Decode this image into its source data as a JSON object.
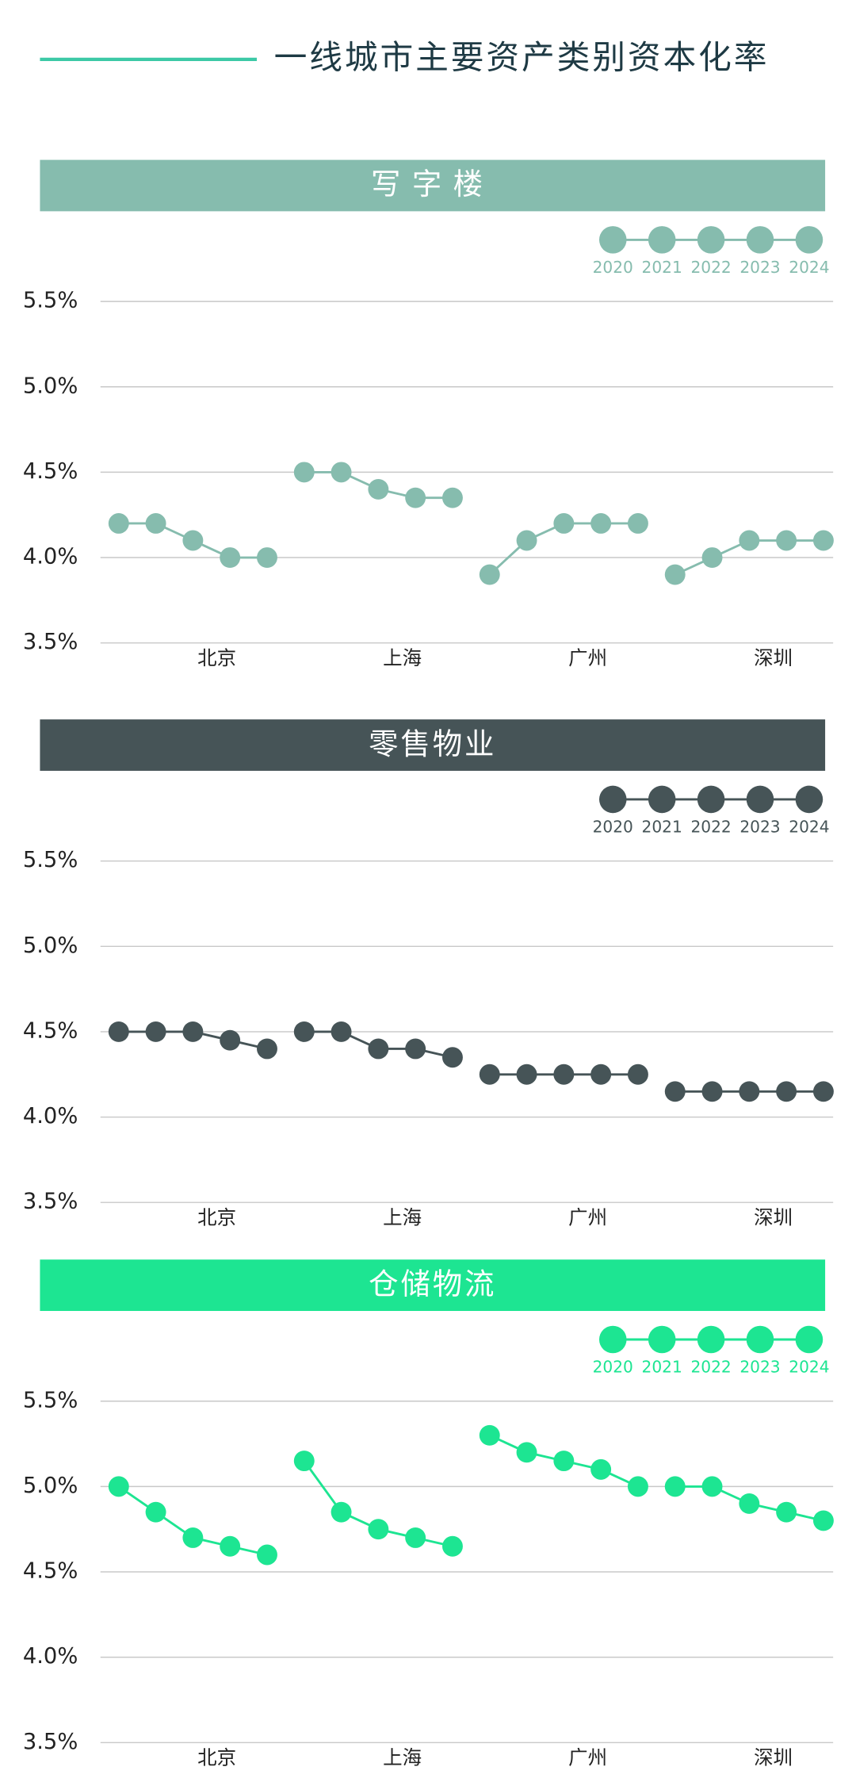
{
  "header": {
    "title": "一线城市主要资产类别资本化率"
  },
  "chart_data": [
    {
      "type": "line",
      "title": "写字楼",
      "color": "#86bcae",
      "categories": [
        "北京",
        "上海",
        "广州",
        "深圳"
      ],
      "series": [
        {
          "name": "2020",
          "values": [
            4.2,
            4.5,
            3.9,
            3.9
          ]
        },
        {
          "name": "2021",
          "values": [
            4.2,
            4.5,
            4.1,
            4.0
          ]
        },
        {
          "name": "2022",
          "values": [
            4.1,
            4.4,
            4.2,
            4.1
          ]
        },
        {
          "name": "2023",
          "values": [
            4.0,
            4.35,
            4.2,
            4.1
          ]
        },
        {
          "name": "2024",
          "values": [
            4.0,
            4.35,
            4.2,
            4.1
          ]
        }
      ],
      "ylim": [
        3.5,
        5.5
      ],
      "yticks": [
        {
          "value": 3.5,
          "label": "3.5%"
        },
        {
          "value": 4.0,
          "label": "4.0%"
        },
        {
          "value": 4.5,
          "label": "4.5%"
        },
        {
          "value": 5.0,
          "label": "5.0%"
        },
        {
          "value": 5.5,
          "label": "5.5%"
        }
      ],
      "grid": true,
      "legend": "top-right"
    },
    {
      "type": "line",
      "title": "零售物业",
      "color": "#465457",
      "categories": [
        "北京",
        "上海",
        "广州",
        "深圳"
      ],
      "series": [
        {
          "name": "2020",
          "values": [
            4.5,
            4.5,
            4.25,
            4.15
          ]
        },
        {
          "name": "2021",
          "values": [
            4.5,
            4.5,
            4.25,
            4.15
          ]
        },
        {
          "name": "2022",
          "values": [
            4.5,
            4.4,
            4.25,
            4.15
          ]
        },
        {
          "name": "2023",
          "values": [
            4.45,
            4.4,
            4.25,
            4.15
          ]
        },
        {
          "name": "2024",
          "values": [
            4.4,
            4.35,
            4.25,
            4.15
          ]
        }
      ],
      "ylim": [
        3.5,
        5.5
      ],
      "yticks": [
        {
          "value": 3.5,
          "label": "3.5%"
        },
        {
          "value": 4.0,
          "label": "4.0%"
        },
        {
          "value": 4.5,
          "label": "4.5%"
        },
        {
          "value": 5.0,
          "label": "5.0%"
        },
        {
          "value": 5.5,
          "label": "5.5%"
        }
      ],
      "grid": true,
      "legend": "top-right"
    },
    {
      "type": "line",
      "title": "仓储物流",
      "color": "#1de592",
      "categories": [
        "北京",
        "上海",
        "广州",
        "深圳"
      ],
      "series": [
        {
          "name": "2020",
          "values": [
            5.0,
            5.15,
            5.3,
            5.0
          ]
        },
        {
          "name": "2021",
          "values": [
            4.85,
            4.85,
            5.2,
            5.0
          ]
        },
        {
          "name": "2022",
          "values": [
            4.7,
            4.75,
            5.15,
            4.9
          ]
        },
        {
          "name": "2023",
          "values": [
            4.65,
            4.7,
            5.1,
            4.85
          ]
        },
        {
          "name": "2024",
          "values": [
            4.6,
            4.65,
            5.0,
            4.8
          ]
        }
      ],
      "ylim": [
        3.5,
        5.5
      ],
      "yticks": [
        {
          "value": 3.5,
          "label": "3.5%"
        },
        {
          "value": 4.0,
          "label": "4.0%"
        },
        {
          "value": 4.5,
          "label": "4.5%"
        },
        {
          "value": 5.0,
          "label": "5.0%"
        },
        {
          "value": 5.5,
          "label": "5.5%"
        }
      ],
      "grid": true,
      "legend": "top-right"
    }
  ]
}
